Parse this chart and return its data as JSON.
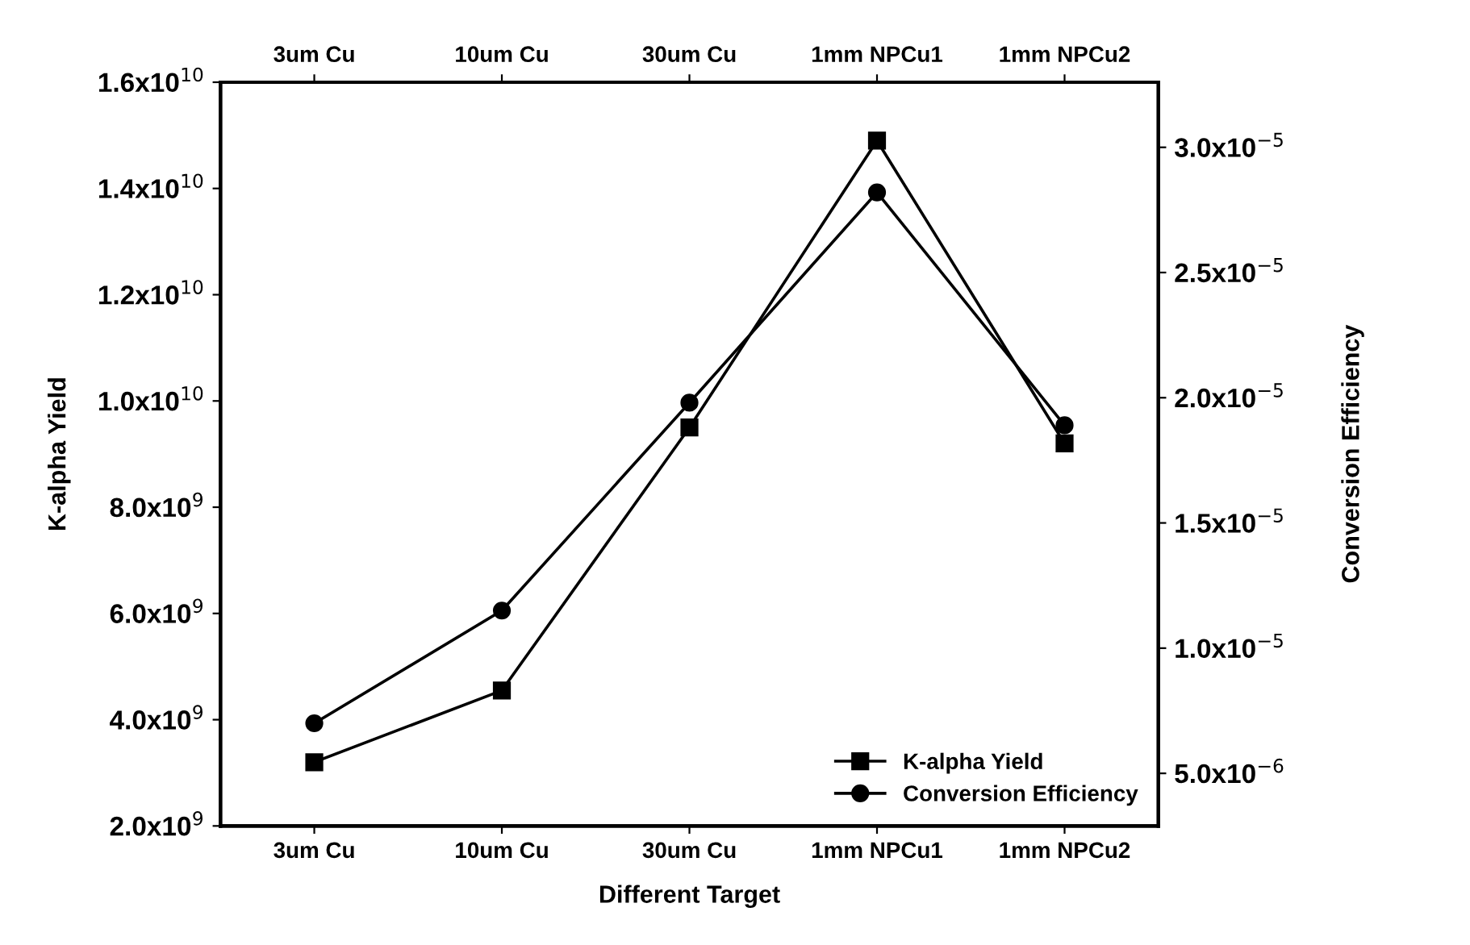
{
  "chart_data": {
    "type": "line",
    "xlabel": "Different Target",
    "ylabel": "K-alpha Yield",
    "y2label": "Conversion Efficiency",
    "categories": [
      "3um Cu",
      "10um Cu",
      "30um Cu",
      "1mm NPCu1",
      "1mm NPCu2"
    ],
    "series": [
      {
        "name": "K-alpha Yield",
        "color": "#000000",
        "marker": "square",
        "values": [
          3200000000.0,
          4550000000.0,
          9500000000.0,
          14900000000.0,
          9200000000.0
        ]
      },
      {
        "name": "Conversion Efficiency",
        "color": "#000000",
        "marker": "circle",
        "axis": "y2",
        "values": [
          7e-06,
          1.15e-05,
          1.98e-05,
          2.82e-05,
          1.89e-05
        ]
      }
    ],
    "ylim": [
      2000000000.0,
      16000000000.0
    ],
    "yticks": [
      {
        "value": 2000000000.0,
        "label": "2.0x10$^{9}$"
      },
      {
        "value": 4000000000.0,
        "label": "4.0x10$^{9}$"
      },
      {
        "value": 6000000000.0,
        "label": "6.0x10$^{9}$"
      },
      {
        "value": 8000000000.0,
        "label": "8.0x10$^{9}$"
      },
      {
        "value": 10000000000.0,
        "label": "1.0x10$^{10}$"
      },
      {
        "value": 12000000000.0,
        "label": "1.2x10$^{10}$"
      },
      {
        "value": 14000000000.0,
        "label": "1.4x10$^{10}$"
      },
      {
        "value": 16000000000.0,
        "label": "1.6x10$^{10}$"
      }
    ],
    "y2lim": [
      2.9e-06,
      3.26e-05
    ],
    "y2ticks": [
      {
        "value": 5e-06,
        "label": "5.0x10$^{−6}$"
      },
      {
        "value": 1e-05,
        "label": "1.0x10$^{−5}$"
      },
      {
        "value": 1.5e-05,
        "label": "1.5x10$^{−5}$"
      },
      {
        "value": 2e-05,
        "label": "2.0x10$^{−5}$"
      },
      {
        "value": 2.5e-05,
        "label": "2.5x10$^{−5}$"
      },
      {
        "value": 3e-05,
        "label": "3.0x10$^{−5}$"
      }
    ],
    "legend": "bottom right",
    "line_style": "solid"
  }
}
